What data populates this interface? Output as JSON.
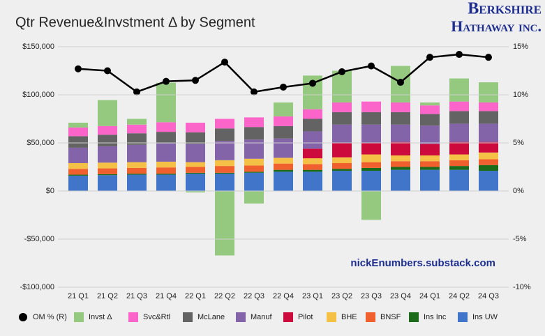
{
  "chart_data": {
    "type": "stacked_bar_line",
    "title": "Qtr Revenue&Invstment Δ by Segment",
    "logo": [
      "Berkshire",
      "Hathaway inc."
    ],
    "annotation": "nickEnumbers.substack.com",
    "categories": [
      "21 Q1",
      "21 Q2",
      "21 Q3",
      "21 Q4",
      "22 Q1",
      "22 Q2",
      "22 Q3",
      "22 Q4",
      "23 Q1",
      "23 Q2",
      "23 Q3",
      "23 Q4",
      "24 Q1",
      "24 Q2",
      "24 Q3"
    ],
    "series": [
      {
        "name": "Ins UW",
        "color": "#4175c9",
        "values": [
          16000,
          16500,
          17000,
          17000,
          18000,
          18000,
          19000,
          20000,
          20000,
          21000,
          21000,
          22000,
          22000,
          22000,
          21000
        ]
      },
      {
        "name": "Ins Inc",
        "color": "#1b6b1b",
        "values": [
          1000,
          1000,
          1000,
          1000,
          1000,
          1000,
          1000,
          2000,
          2000,
          2000,
          3000,
          3000,
          3000,
          4000,
          6000
        ]
      },
      {
        "name": "BNSF",
        "color": "#f0602e",
        "values": [
          6000,
          6000,
          6000,
          6500,
          6000,
          7000,
          6500,
          6500,
          6000,
          6000,
          6000,
          6000,
          6000,
          6000,
          6000
        ]
      },
      {
        "name": "BHE",
        "color": "#f4c045",
        "values": [
          6000,
          6000,
          6000,
          6000,
          5000,
          6000,
          7000,
          6000,
          6000,
          6000,
          8000,
          6000,
          6000,
          6000,
          7000
        ]
      },
      {
        "name": "Pilot",
        "color": "#cc0a3c",
        "values": [
          null,
          null,
          null,
          null,
          null,
          null,
          null,
          null,
          10000,
          15000,
          12000,
          14000,
          12000,
          13000,
          11000
        ]
      },
      {
        "name": "Manuf",
        "color": "#8464a8",
        "values": [
          16000,
          17000,
          18000,
          19000,
          19000,
          20000,
          20000,
          20000,
          18000,
          19000,
          19000,
          18000,
          19000,
          19000,
          19000
        ]
      },
      {
        "name": "McLane",
        "color": "#636363",
        "values": [
          12000,
          12000,
          12000,
          12000,
          12000,
          13000,
          13000,
          13000,
          13000,
          13000,
          13000,
          13000,
          12000,
          13000,
          13000
        ]
      },
      {
        "name": "Svc&Rtl",
        "color": "#fb64c8",
        "values": [
          9000,
          9000,
          9000,
          10000,
          10000,
          10000,
          10000,
          10000,
          10000,
          10000,
          11000,
          10000,
          9000,
          10000,
          9000
        ]
      },
      {
        "name": "Invst Δ",
        "color": "#95c97f",
        "values": [
          5000,
          27000,
          6000,
          41000,
          -1500,
          -67000,
          -13000,
          14500,
          35000,
          33000,
          -30000,
          38000,
          3000,
          24000,
          21000
        ]
      },
      {
        "name": "OM % (R)",
        "color": "#000000",
        "axis": "y2",
        "values": [
          12.7,
          12.5,
          10.3,
          11.4,
          11.5,
          13.4,
          10.3,
          10.8,
          11.2,
          12.4,
          13.0,
          11.3,
          13.9,
          14.2,
          13.9
        ]
      }
    ],
    "ylim": [
      -100000,
      150000
    ],
    "yticks": [
      {
        "value": -100000,
        "label": "-$100,000"
      },
      {
        "value": -50000,
        "label": "-$50,000"
      },
      {
        "value": 0,
        "label": "$0"
      },
      {
        "value": 50000,
        "label": "$50,000"
      },
      {
        "value": 100000,
        "label": "$100,000"
      },
      {
        "value": 150000,
        "label": "$150,000"
      }
    ],
    "y2lim": [
      -10,
      15
    ],
    "y2ticks": [
      {
        "value": -10,
        "label": "-10%"
      },
      {
        "value": -5,
        "label": "-5%"
      },
      {
        "value": 0,
        "label": "0%"
      },
      {
        "value": 5,
        "label": "5%"
      },
      {
        "value": 10,
        "label": "10%"
      },
      {
        "value": 15,
        "label": "15%"
      }
    ],
    "grid": true,
    "legend": "bottom"
  }
}
